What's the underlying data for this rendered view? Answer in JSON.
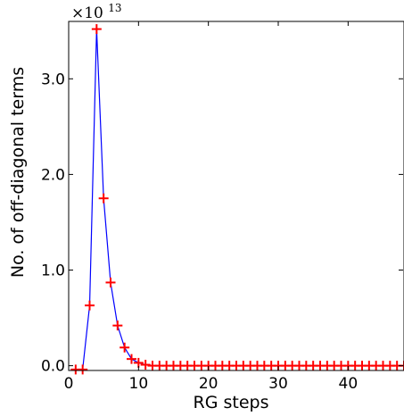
{
  "chart_data": {
    "type": "line",
    "xlabel": "RG steps",
    "ylabel": "No. of off-diagonal terms",
    "offset_text": {
      "base": "×10",
      "exponent": "13"
    },
    "xlim": [
      0,
      48
    ],
    "ylim": [
      -0.05,
      3.6
    ],
    "x_ticks": [
      0,
      10,
      20,
      30,
      40
    ],
    "x_tick_labels": [
      "0",
      "10",
      "20",
      "30",
      "40"
    ],
    "y_ticks": [
      0.0,
      1.0,
      2.0,
      3.0
    ],
    "y_tick_labels": [
      "0.0",
      "1.0",
      "2.0",
      "3.0"
    ],
    "y_scale_note": "values in units of 1e13",
    "grid": false,
    "series": [
      {
        "line_color": "#0000ff",
        "marker": "+",
        "marker_color": "#ff0000",
        "x": [
          1,
          2,
          3,
          4,
          5,
          6,
          7,
          8,
          9,
          10,
          11,
          12,
          13,
          14,
          15,
          16,
          17,
          18,
          19,
          20,
          21,
          22,
          23,
          24,
          25,
          26,
          27,
          28,
          29,
          30,
          31,
          32,
          33,
          34,
          35,
          36,
          37,
          38,
          39,
          40,
          41,
          42,
          43,
          44,
          45,
          46,
          47,
          48
        ],
        "y": [
          -0.04,
          -0.04,
          0.63,
          3.52,
          1.75,
          0.87,
          0.42,
          0.19,
          0.07,
          0.03,
          0.01,
          0.0,
          0.0,
          0.0,
          0.0,
          0.0,
          0.0,
          0.0,
          0.0,
          0.0,
          0.0,
          0.0,
          0.0,
          0.0,
          0.0,
          0.0,
          0.0,
          0.0,
          0.0,
          0.0,
          0.0,
          0.0,
          0.0,
          0.0,
          0.0,
          0.0,
          0.0,
          0.0,
          0.0,
          0.0,
          0.0,
          0.0,
          0.0,
          0.0,
          0.0,
          0.0,
          0.0,
          0.0
        ]
      }
    ]
  }
}
